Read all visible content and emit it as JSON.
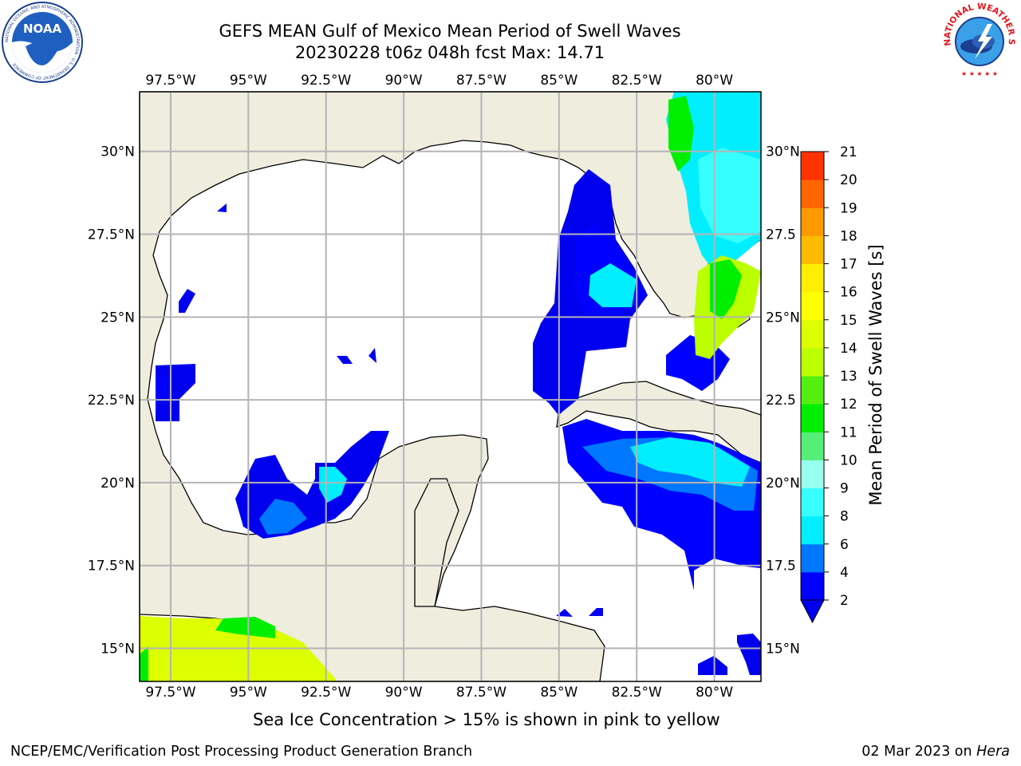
{
  "header": {
    "title_line1": "GEFS MEAN Gulf of Mexico Mean Period of Swell Waves",
    "title_line2": "20230228 t06z 048h fcst   Max: 14.71"
  },
  "logos": {
    "noaa": {
      "icon": "noaa-logo",
      "text": "NOAA",
      "ring_text": "NATIONAL OCEANIC AND ATMOSPHERIC ADMINISTRATION · U.S. DEPARTMENT OF COMMERCE"
    },
    "nws": {
      "icon": "nws-logo",
      "ring_text": "NATIONAL WEATHER SERVICE"
    }
  },
  "map": {
    "lon_range": [
      -98.5,
      -78.5
    ],
    "lat_range": [
      14,
      31.8
    ],
    "lon_labels": [
      "97.5°W",
      "95°W",
      "92.5°W",
      "90°W",
      "87.5°W",
      "85°W",
      "82.5°W",
      "80°W"
    ],
    "lon_values": [
      -97.5,
      -95,
      -92.5,
      -90,
      -87.5,
      -85,
      -82.5,
      -80
    ],
    "lat_labels_left": [
      "30°N",
      "27.5°N",
      "25°N",
      "22.5°N",
      "20°N",
      "17.5°N",
      "15°N"
    ],
    "lat_labels_right": [
      "30°N",
      "27.5",
      "25°N",
      "22.5",
      "20°N",
      "17.5",
      "15°N"
    ],
    "lat_values": [
      30,
      27.5,
      25,
      22.5,
      20,
      17.5,
      15
    ],
    "colors": {
      "land": "#efedde",
      "ocean": "#ffffff",
      "grid": "#b4b4b4",
      "coast": "#000000"
    }
  },
  "colorbar": {
    "title": "Mean Period of Swell Waves [s]",
    "tick_labels": [
      "2",
      "4",
      "6",
      "8",
      "9",
      "10",
      "11",
      "12",
      "13",
      "14",
      "15",
      "16",
      "17",
      "18",
      "19",
      "20",
      "21"
    ],
    "bins": [
      {
        "value": 2,
        "color": "#0000ff"
      },
      {
        "value": 4,
        "color": "#0077ff"
      },
      {
        "value": 6,
        "color": "#00eeff"
      },
      {
        "value": 8,
        "color": "#38ffff"
      },
      {
        "value": 9,
        "color": "#99ffee"
      },
      {
        "value": 10,
        "color": "#55ee77"
      },
      {
        "value": 11,
        "color": "#00ee00"
      },
      {
        "value": 12,
        "color": "#55ee11"
      },
      {
        "value": 13,
        "color": "#bbff00"
      },
      {
        "value": 14,
        "color": "#ddff00"
      },
      {
        "value": 15,
        "color": "#ffff00"
      },
      {
        "value": 16,
        "color": "#ffee00"
      },
      {
        "value": 17,
        "color": "#ffbb00"
      },
      {
        "value": 18,
        "color": "#ff9900"
      },
      {
        "value": 19,
        "color": "#ff6600"
      },
      {
        "value": 20,
        "color": "#ff3300"
      }
    ],
    "under_color": "#0000ee",
    "max_value": 21
  },
  "note": "Sea Ice Concentration > 15% is shown in pink to yellow",
  "footer": {
    "left": "NCEP/EMC/Verification Post Processing Product Generation Branch",
    "right_date": "02 Mar 2023 on ",
    "right_machine": "Hera"
  }
}
